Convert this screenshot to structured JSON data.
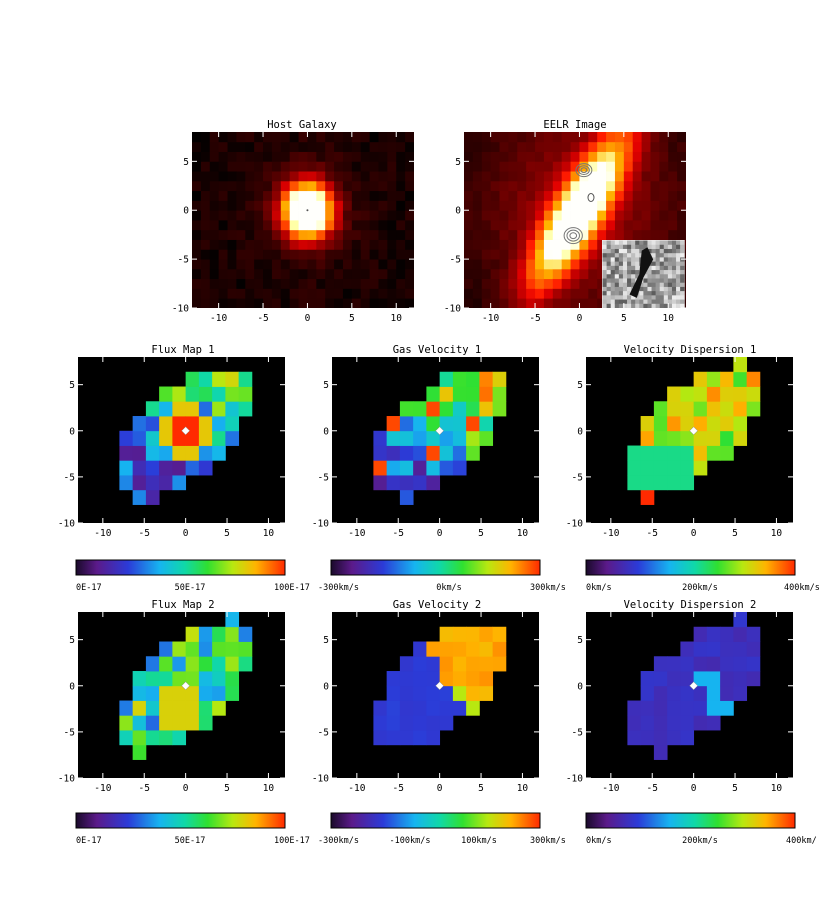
{
  "figure": {
    "panels": [
      {
        "id": "host-galaxy",
        "title": "Host Galaxy"
      },
      {
        "id": "eelr-image",
        "title": "EELR Image"
      },
      {
        "id": "flux-map-1",
        "title": "Flux Map 1"
      },
      {
        "id": "gas-velocity-1",
        "title": "Gas Velocity 1"
      },
      {
        "id": "velocity-dispersion-1",
        "title": "Velocity Dispersion 1"
      },
      {
        "id": "flux-map-2",
        "title": "Flux Map 2"
      },
      {
        "id": "gas-velocity-2",
        "title": "Gas Velocity 2"
      },
      {
        "id": "velocity-dispersion-2",
        "title": "Velocity Dispersion 2"
      }
    ],
    "colorbars": [
      {
        "id": "flux-1",
        "labels": [
          "0E-17",
          "50E-17",
          "100E-17"
        ]
      },
      {
        "id": "velocity-1",
        "labels": [
          "-300km/s",
          "0km/s",
          "300km/s"
        ]
      },
      {
        "id": "dispersion-1",
        "labels": [
          "0km/s",
          "200km/s",
          "400km/s"
        ]
      },
      {
        "id": "flux-2",
        "labels": [
          "0E-17",
          "50E-17",
          "100E-17"
        ]
      },
      {
        "id": "velocity-2",
        "labels": [
          "-300km/s",
          "-100km/s",
          "100km/s",
          "300km/s"
        ]
      },
      {
        "id": "dispersion-2",
        "labels": [
          "0km/s",
          "200km/s",
          "400km/"
        ]
      }
    ]
  },
  "chart_data": [
    {
      "type": "heatmap",
      "title": "Host Galaxy",
      "colormap": "red-temperature",
      "xticks": [
        "-10",
        "-5",
        "0",
        "5",
        "10"
      ],
      "yticks": [
        "-10",
        "-5",
        "0",
        "5"
      ],
      "xlim": [
        -13,
        12
      ],
      "ylim": [
        -10,
        8
      ],
      "emission_peak": [
        0,
        0
      ]
    },
    {
      "type": "heatmap",
      "title": "EELR Image",
      "colormap": "red-temperature",
      "xticks": [
        "-10",
        "-5",
        "0",
        "5",
        "10"
      ],
      "yticks": [
        "-10",
        "-5",
        "0",
        "5"
      ],
      "xlim": [
        -13,
        12
      ],
      "ylim": [
        -10,
        8
      ],
      "overlay": "contours",
      "inset": "grayscale"
    },
    {
      "type": "heatmap",
      "title": "Flux Map 1",
      "colormap": "rainbow",
      "cbar": [
        "0E-17",
        "50E-17",
        "100E-17"
      ],
      "xticks": [
        "-10",
        "-5",
        "0",
        "5",
        "10"
      ],
      "yticks": [
        "-10",
        "-5",
        "0",
        "5"
      ],
      "xlim": [
        -13,
        12
      ],
      "ylim": [
        -10,
        8
      ]
    },
    {
      "type": "heatmap",
      "title": "Gas Velocity 1",
      "colormap": "rainbow",
      "cbar": [
        "-300km/s",
        "0km/s",
        "300km/s"
      ],
      "xticks": [
        "-10",
        "-5",
        "0",
        "5",
        "10"
      ],
      "yticks": [
        "-10",
        "-5",
        "0",
        "5"
      ],
      "xlim": [
        -13,
        12
      ],
      "ylim": [
        -10,
        8
      ]
    },
    {
      "type": "heatmap",
      "title": "Velocity Dispersion 1",
      "colormap": "rainbow",
      "cbar": [
        "0km/s",
        "200km/s",
        "400km/s"
      ],
      "xticks": [
        "-10",
        "-5",
        "0",
        "5",
        "10"
      ],
      "yticks": [
        "-10",
        "-5",
        "0",
        "5"
      ],
      "xlim": [
        -13,
        12
      ],
      "ylim": [
        -10,
        8
      ]
    },
    {
      "type": "heatmap",
      "title": "Flux Map 2",
      "colormap": "rainbow",
      "cbar": [
        "0E-17",
        "50E-17",
        "100E-17"
      ],
      "xticks": [
        "-10",
        "-5",
        "0",
        "5",
        "10"
      ],
      "yticks": [
        "-10",
        "-5",
        "0",
        "5"
      ],
      "xlim": [
        -13,
        12
      ],
      "ylim": [
        -10,
        8
      ]
    },
    {
      "type": "heatmap",
      "title": "Gas Velocity 2",
      "colormap": "rainbow",
      "cbar": [
        "-300km/s",
        "-100km/s",
        "100km/s",
        "300km/s"
      ],
      "xticks": [
        "-10",
        "-5",
        "0",
        "5",
        "10"
      ],
      "yticks": [
        "-10",
        "-5",
        "0",
        "5"
      ],
      "xlim": [
        -13,
        12
      ],
      "ylim": [
        -10,
        8
      ]
    },
    {
      "type": "heatmap",
      "title": "Velocity Dispersion 2",
      "colormap": "rainbow",
      "cbar": [
        "0km/s",
        "200km/s",
        "400km/"
      ],
      "xticks": [
        "-10",
        "-5",
        "0",
        "5",
        "10"
      ],
      "yticks": [
        "-10",
        "-5",
        "0",
        "5"
      ],
      "xlim": [
        -13,
        12
      ],
      "ylim": [
        -10,
        8
      ]
    }
  ]
}
